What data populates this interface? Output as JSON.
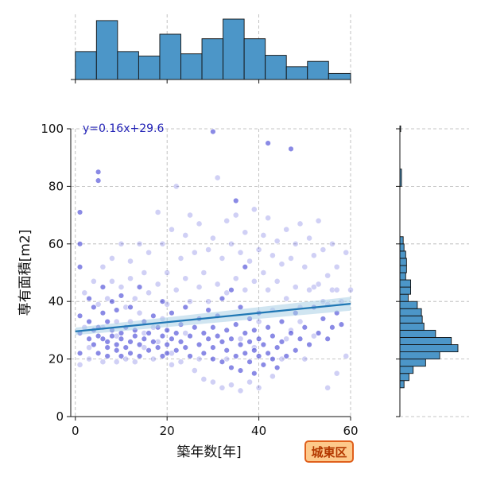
{
  "chart_data": {
    "type": "scatter",
    "title": "",
    "xlabel": "築年数[年]",
    "ylabel": "専有面積[m2]",
    "xlim": [
      -1,
      60
    ],
    "ylim": [
      0,
      100
    ],
    "xticks": [
      0,
      20,
      40,
      60
    ],
    "yticks": [
      0,
      20,
      40,
      60,
      80,
      100
    ],
    "grid": true,
    "regression": {
      "equation": "y=0.16x+29.6",
      "slope": 0.16,
      "intercept": 29.6
    },
    "badge": "城東区",
    "colors": {
      "points": "#2a2ad0",
      "line": "#1f77b4",
      "hist": "#4c96c8",
      "band": "#a9cfe6"
    },
    "top_histogram": {
      "bin_edges": [
        0,
        4.6,
        9.2,
        13.8,
        18.4,
        23.0,
        27.6,
        32.2,
        36.8,
        41.4,
        46.0,
        50.6,
        55.2,
        60
      ],
      "counts": [
        37,
        78,
        37,
        31,
        60,
        34,
        54,
        80,
        54,
        32,
        17,
        24,
        8
      ]
    },
    "right_histogram": {
      "bin_edges": [
        10,
        12.5,
        15,
        17.5,
        20,
        22.5,
        25,
        27.5,
        30,
        32.5,
        35,
        37.5,
        40,
        42.5,
        45,
        47.5,
        50,
        52.5,
        55,
        57.5,
        60,
        62.5,
        65,
        67.5,
        70,
        72.5,
        75
      ],
      "counts": [
        5,
        11,
        16,
        31,
        48,
        70,
        62,
        43,
        29,
        27,
        26,
        21,
        10,
        13,
        13,
        7,
        8,
        8,
        7,
        5,
        4,
        0,
        0,
        0,
        0,
        0
      ]
    },
    "points_dense": [
      [
        1,
        29
      ],
      [
        1,
        22
      ],
      [
        1,
        35
      ],
      [
        1,
        60
      ],
      [
        1,
        71
      ],
      [
        1,
        52
      ],
      [
        3,
        27
      ],
      [
        3,
        33
      ],
      [
        3,
        41
      ],
      [
        4,
        25
      ],
      [
        4,
        30
      ],
      [
        4,
        38
      ],
      [
        5,
        22
      ],
      [
        5,
        28
      ],
      [
        5,
        31
      ],
      [
        5,
        85
      ],
      [
        5,
        82
      ],
      [
        6,
        27
      ],
      [
        6,
        36
      ],
      [
        6,
        45
      ],
      [
        7,
        21
      ],
      [
        7,
        24
      ],
      [
        7,
        26
      ],
      [
        7,
        33
      ],
      [
        8,
        28
      ],
      [
        8,
        30
      ],
      [
        8,
        40
      ],
      [
        9,
        23
      ],
      [
        9,
        25
      ],
      [
        9,
        37
      ],
      [
        10,
        21
      ],
      [
        10,
        27
      ],
      [
        10,
        29
      ],
      [
        10,
        42
      ],
      [
        11,
        24
      ],
      [
        11,
        31
      ],
      [
        12,
        22
      ],
      [
        12,
        26
      ],
      [
        12,
        38
      ],
      [
        13,
        28
      ],
      [
        13,
        30
      ],
      [
        14,
        21
      ],
      [
        14,
        25
      ],
      [
        14,
        45
      ],
      [
        15,
        27
      ],
      [
        15,
        33
      ],
      [
        16,
        23
      ],
      [
        16,
        29
      ],
      [
        17,
        26
      ],
      [
        17,
        35
      ],
      [
        18,
        24
      ],
      [
        18,
        31
      ],
      [
        19,
        21
      ],
      [
        19,
        28
      ],
      [
        19,
        40
      ],
      [
        20,
        25
      ],
      [
        20,
        30
      ],
      [
        20,
        22
      ],
      [
        21,
        27
      ],
      [
        21,
        36
      ],
      [
        22,
        23
      ],
      [
        22,
        29
      ],
      [
        23,
        26
      ],
      [
        23,
        32
      ],
      [
        24,
        24
      ],
      [
        24,
        38
      ],
      [
        25,
        28
      ],
      [
        25,
        21
      ],
      [
        26,
        31
      ],
      [
        27,
        25
      ],
      [
        27,
        34
      ],
      [
        28,
        22
      ],
      [
        28,
        29
      ],
      [
        29,
        27
      ],
      [
        29,
        37
      ],
      [
        30,
        24
      ],
      [
        30,
        31
      ],
      [
        30,
        20
      ],
      [
        31,
        28
      ],
      [
        31,
        35
      ],
      [
        32,
        26
      ],
      [
        32,
        19
      ],
      [
        32,
        41
      ],
      [
        33,
        23
      ],
      [
        33,
        30
      ],
      [
        34,
        17
      ],
      [
        34,
        27
      ],
      [
        34,
        44
      ],
      [
        35,
        21
      ],
      [
        35,
        32
      ],
      [
        35,
        75
      ],
      [
        36,
        25
      ],
      [
        36,
        16
      ],
      [
        36,
        38
      ],
      [
        37,
        29
      ],
      [
        37,
        22
      ],
      [
        37,
        52
      ],
      [
        38,
        19
      ],
      [
        38,
        26
      ],
      [
        38,
        34
      ],
      [
        39,
        23
      ],
      [
        39,
        30
      ],
      [
        39,
        15
      ],
      [
        40,
        27
      ],
      [
        40,
        21
      ],
      [
        40,
        36
      ],
      [
        41,
        18
      ],
      [
        41,
        25
      ],
      [
        42,
        22
      ],
      [
        42,
        31
      ],
      [
        43,
        20
      ],
      [
        43,
        28
      ],
      [
        44,
        24
      ],
      [
        44,
        17
      ],
      [
        45,
        26
      ],
      [
        45,
        33
      ],
      [
        46,
        21
      ],
      [
        47,
        29
      ],
      [
        48,
        23
      ],
      [
        48,
        36
      ],
      [
        49,
        27
      ],
      [
        50,
        31
      ],
      [
        51,
        25
      ],
      [
        52,
        38
      ],
      [
        53,
        29
      ],
      [
        54,
        34
      ],
      [
        55,
        27
      ],
      [
        56,
        31
      ],
      [
        57,
        36
      ],
      [
        58,
        32
      ],
      [
        30,
        99
      ],
      [
        47,
        93
      ],
      [
        42,
        95
      ]
    ],
    "points_light": [
      [
        1,
        18
      ],
      [
        2,
        31
      ],
      [
        2,
        43
      ],
      [
        3,
        20
      ],
      [
        4,
        47
      ],
      [
        5,
        39
      ],
      [
        6,
        19
      ],
      [
        6,
        52
      ],
      [
        7,
        41
      ],
      [
        8,
        47
      ],
      [
        8,
        55
      ],
      [
        9,
        19
      ],
      [
        9,
        33
      ],
      [
        10,
        45
      ],
      [
        10,
        60
      ],
      [
        11,
        20
      ],
      [
        11,
        38
      ],
      [
        12,
        48
      ],
      [
        12,
        54
      ],
      [
        13,
        19
      ],
      [
        13,
        41
      ],
      [
        14,
        36
      ],
      [
        14,
        60
      ],
      [
        15,
        50
      ],
      [
        15,
        24
      ],
      [
        16,
        43
      ],
      [
        16,
        57
      ],
      [
        17,
        20
      ],
      [
        17,
        31
      ],
      [
        18,
        46
      ],
      [
        18,
        71
      ],
      [
        19,
        60
      ],
      [
        19,
        34
      ],
      [
        20,
        50
      ],
      [
        20,
        39
      ],
      [
        21,
        65
      ],
      [
        21,
        18
      ],
      [
        22,
        44
      ],
      [
        22,
        80
      ],
      [
        23,
        55
      ],
      [
        23,
        19
      ],
      [
        24,
        48
      ],
      [
        24,
        63
      ],
      [
        25,
        40
      ],
      [
        25,
        70
      ],
      [
        26,
        57
      ],
      [
        26,
        16
      ],
      [
        27,
        45
      ],
      [
        27,
        67
      ],
      [
        28,
        50
      ],
      [
        28,
        13
      ],
      [
        29,
        58
      ],
      [
        29,
        40
      ],
      [
        30,
        62
      ],
      [
        30,
        12
      ],
      [
        31,
        46
      ],
      [
        31,
        83
      ],
      [
        32,
        55
      ],
      [
        32,
        10
      ],
      [
        33,
        43
      ],
      [
        33,
        68
      ],
      [
        34,
        60
      ],
      [
        34,
        11
      ],
      [
        35,
        48
      ],
      [
        35,
        70
      ],
      [
        36,
        57
      ],
      [
        36,
        9
      ],
      [
        37,
        44
      ],
      [
        37,
        64
      ],
      [
        38,
        54
      ],
      [
        38,
        12
      ],
      [
        39,
        47
      ],
      [
        39,
        72
      ],
      [
        40,
        58
      ],
      [
        40,
        10
      ],
      [
        41,
        50
      ],
      [
        41,
        63
      ],
      [
        42,
        44
      ],
      [
        42,
        69
      ],
      [
        43,
        56
      ],
      [
        43,
        14
      ],
      [
        44,
        47
      ],
      [
        44,
        61
      ],
      [
        45,
        53
      ],
      [
        45,
        20
      ],
      [
        46,
        41
      ],
      [
        46,
        65
      ],
      [
        47,
        55
      ],
      [
        47,
        30
      ],
      [
        48,
        45
      ],
      [
        48,
        60
      ],
      [
        49,
        38
      ],
      [
        49,
        67
      ],
      [
        50,
        52
      ],
      [
        50,
        20
      ],
      [
        51,
        44
      ],
      [
        51,
        62
      ],
      [
        52,
        56
      ],
      [
        52,
        28
      ],
      [
        53,
        46
      ],
      [
        53,
        68
      ],
      [
        54,
        40
      ],
      [
        54,
        58
      ],
      [
        55,
        49
      ],
      [
        55,
        10
      ],
      [
        56,
        44
      ],
      [
        56,
        60
      ],
      [
        57,
        52
      ],
      [
        57,
        15
      ],
      [
        58,
        40
      ],
      [
        59,
        57
      ],
      [
        59,
        21
      ],
      [
        60,
        44
      ],
      [
        33,
        20
      ],
      [
        36,
        27
      ],
      [
        39,
        24
      ],
      [
        27,
        20
      ],
      [
        24,
        29
      ],
      [
        21,
        22
      ],
      [
        18,
        26
      ],
      [
        15,
        29
      ],
      [
        12,
        33
      ],
      [
        9,
        28
      ],
      [
        6,
        31
      ],
      [
        3,
        24
      ],
      [
        40,
        33
      ],
      [
        43,
        37
      ],
      [
        46,
        27
      ],
      [
        49,
        33
      ],
      [
        52,
        45
      ],
      [
        55,
        39
      ],
      [
        57,
        44
      ]
    ]
  }
}
